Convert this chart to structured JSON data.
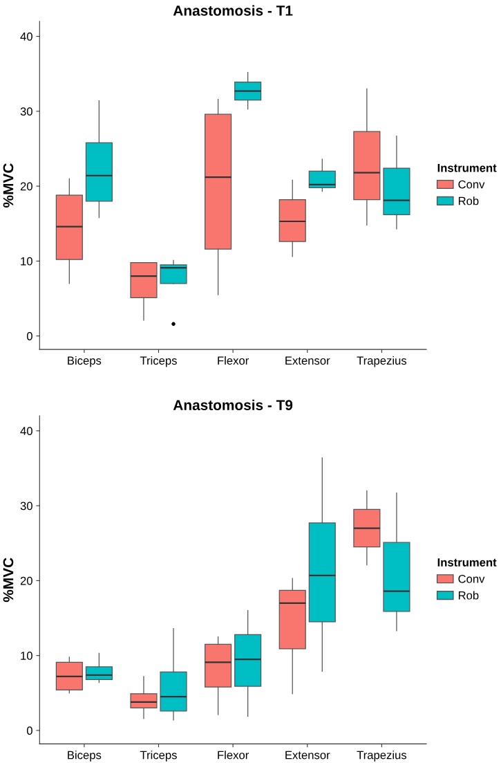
{
  "chart_data": [
    {
      "type": "box",
      "title": "Anastomosis - T1",
      "ylabel": "%MVC",
      "legend_title": "Instrument",
      "legend": "right",
      "grid": false,
      "categories": [
        "Biceps",
        "Triceps",
        "Flexor",
        "Extensor",
        "Trapezius"
      ],
      "ylim": [
        -1.8,
        42
      ],
      "yticks": [
        0,
        10,
        20,
        30,
        40
      ],
      "series": [
        {
          "name": "Conv",
          "color": "#f8766d",
          "boxes": [
            {
              "low": 7.0,
              "q1": 10.2,
              "median": 14.6,
              "q3": 18.8,
              "high": 21.0
            },
            {
              "low": 2.1,
              "q1": 5.1,
              "median": 8.0,
              "q3": 9.8,
              "high": 9.8
            },
            {
              "low": 5.5,
              "q1": 11.6,
              "median": 21.2,
              "q3": 29.6,
              "high": 31.6
            },
            {
              "low": 10.6,
              "q1": 12.6,
              "median": 15.3,
              "q3": 18.2,
              "high": 20.8
            },
            {
              "low": 14.8,
              "q1": 18.2,
              "median": 21.8,
              "q3": 27.3,
              "high": 33.0
            }
          ]
        },
        {
          "name": "Rob",
          "color": "#00bfc4",
          "boxes": [
            {
              "low": 15.8,
              "q1": 18.0,
              "median": 21.4,
              "q3": 25.8,
              "high": 31.4
            },
            {
              "low": 7.0,
              "q1": 7.0,
              "median": 9.1,
              "q3": 9.5,
              "high": 10.1,
              "outliers": [
                1.6
              ]
            },
            {
              "low": 30.3,
              "q1": 31.5,
              "median": 32.7,
              "q3": 33.9,
              "high": 35.2
            },
            {
              "low": 19.3,
              "q1": 19.8,
              "median": 20.2,
              "q3": 22.0,
              "high": 23.6
            },
            {
              "low": 14.3,
              "q1": 16.2,
              "median": 18.1,
              "q3": 22.4,
              "high": 26.7
            }
          ]
        }
      ]
    },
    {
      "type": "box",
      "title": "Anastomosis - T9",
      "ylabel": "%MVC",
      "legend_title": "Instrument",
      "legend": "right",
      "grid": false,
      "categories": [
        "Biceps",
        "Triceps",
        "Flexor",
        "Extensor",
        "Trapezius"
      ],
      "ylim": [
        -1.8,
        42
      ],
      "yticks": [
        0,
        10,
        20,
        30,
        40
      ],
      "series": [
        {
          "name": "Conv",
          "color": "#f8766d",
          "boxes": [
            {
              "low": 5.0,
              "q1": 5.4,
              "median": 7.2,
              "q3": 9.1,
              "high": 9.8
            },
            {
              "low": 1.6,
              "q1": 3.0,
              "median": 3.8,
              "q3": 4.9,
              "high": 7.2
            },
            {
              "low": 2.1,
              "q1": 5.8,
              "median": 9.1,
              "q3": 11.5,
              "high": 12.5
            },
            {
              "low": 4.9,
              "q1": 10.9,
              "median": 17.0,
              "q3": 18.7,
              "high": 20.3
            },
            {
              "low": 22.1,
              "q1": 24.5,
              "median": 27.0,
              "q3": 29.5,
              "high": 32.0
            }
          ]
        },
        {
          "name": "Rob",
          "color": "#00bfc4",
          "boxes": [
            {
              "low": 6.4,
              "q1": 6.8,
              "median": 7.4,
              "q3": 8.5,
              "high": 10.3
            },
            {
              "low": 1.4,
              "q1": 2.6,
              "median": 4.5,
              "q3": 7.8,
              "high": 13.6
            },
            {
              "low": 1.9,
              "q1": 5.9,
              "median": 9.5,
              "q3": 12.8,
              "high": 16.0
            },
            {
              "low": 7.9,
              "q1": 14.5,
              "median": 20.7,
              "q3": 27.7,
              "high": 36.4
            },
            {
              "low": 13.3,
              "q1": 15.9,
              "median": 18.6,
              "q3": 25.1,
              "high": 31.7
            }
          ]
        }
      ]
    }
  ]
}
